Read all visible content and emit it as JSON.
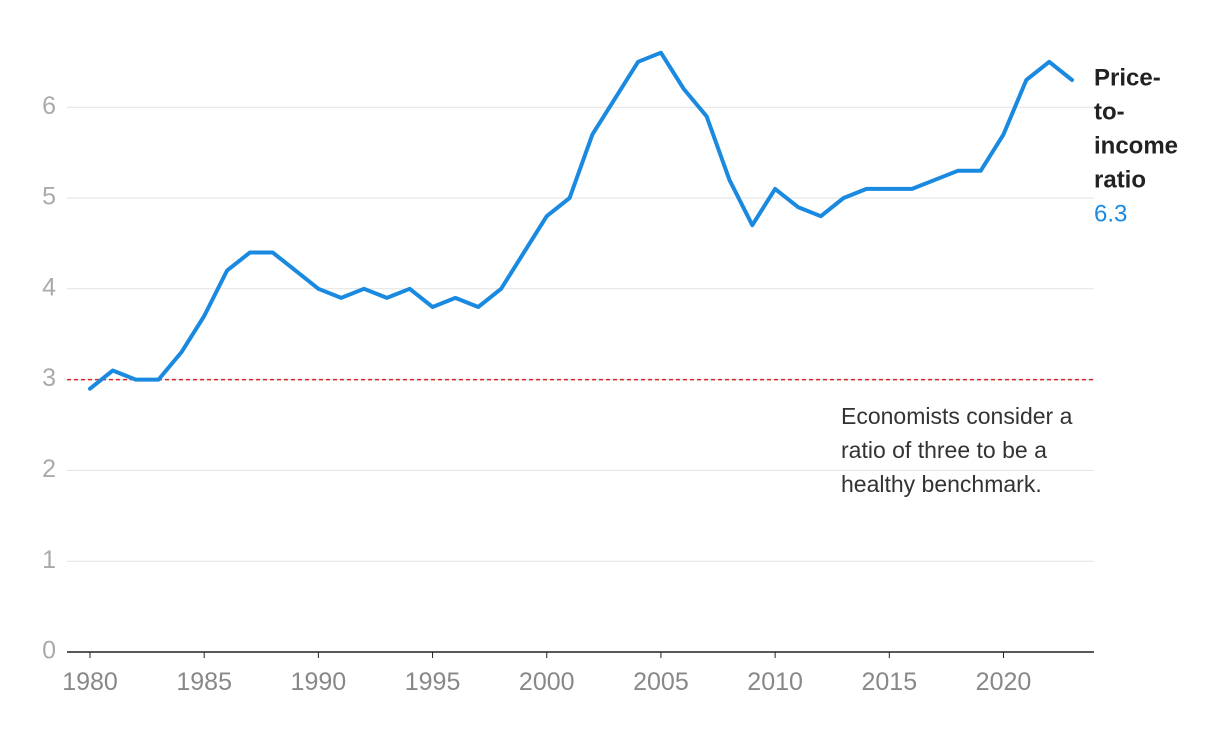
{
  "chart_data": {
    "type": "line",
    "title": "",
    "xlabel": "",
    "ylabel": "",
    "xlim": [
      1980,
      2023
    ],
    "ylim": [
      0,
      6.6
    ],
    "x_ticks": [
      1980,
      1985,
      1990,
      1995,
      2000,
      2005,
      2010,
      2015,
      2020
    ],
    "x_tick_labels": [
      "1980",
      "1985",
      "1990",
      "1995",
      "2000",
      "2005",
      "2010",
      "2015",
      "2020"
    ],
    "y_ticks": [
      0,
      1,
      2,
      3,
      4,
      5,
      6
    ],
    "y_tick_labels": [
      "0",
      "1",
      "2",
      "3",
      "4",
      "5",
      "6"
    ],
    "grid": "horizontal",
    "series": [
      {
        "name": "Price-to-income ratio",
        "name_lines": [
          "Price-",
          "to-",
          "income",
          "ratio"
        ],
        "latest_value_label": "6.3",
        "color": "#1a8ae0",
        "x": [
          1980,
          1981,
          1982,
          1983,
          1984,
          1985,
          1986,
          1987,
          1988,
          1989,
          1990,
          1991,
          1992,
          1993,
          1994,
          1995,
          1996,
          1997,
          1998,
          1999,
          2000,
          2001,
          2002,
          2003,
          2004,
          2005,
          2006,
          2007,
          2008,
          2009,
          2010,
          2011,
          2012,
          2013,
          2014,
          2015,
          2016,
          2017,
          2018,
          2019,
          2020,
          2021,
          2022,
          2023
        ],
        "values": [
          2.9,
          3.1,
          3.0,
          3.0,
          3.3,
          3.7,
          4.2,
          4.4,
          4.4,
          4.2,
          4.0,
          3.9,
          4.0,
          3.9,
          4.0,
          3.8,
          3.9,
          3.8,
          4.0,
          4.4,
          4.8,
          5.0,
          5.7,
          6.1,
          6.5,
          6.6,
          6.2,
          5.9,
          5.2,
          4.7,
          5.1,
          4.9,
          4.8,
          5.0,
          5.1,
          5.1,
          5.1,
          5.2,
          5.3,
          5.3,
          5.7,
          6.3,
          6.5,
          6.3
        ]
      }
    ],
    "reference_line": {
      "value": 3,
      "color": "#d62728",
      "style": "dashed",
      "annotation_lines": [
        "Economists consider a",
        "ratio of three to be a",
        "healthy benchmark."
      ]
    }
  }
}
